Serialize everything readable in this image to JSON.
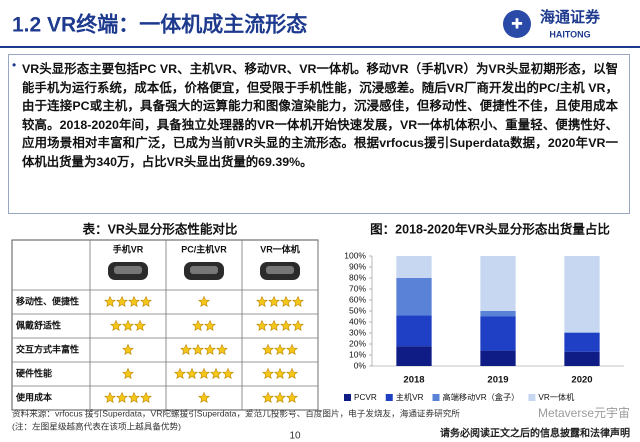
{
  "header": {
    "title": "1.2 VR终端：一体机成主流形态",
    "logo_cn": "海通证券",
    "logo_en": "HAITONG"
  },
  "body": {
    "text": "VR头显形态主要包括PC VR、主机VR、移动VR、VR一体机。移动VR（手机VR）为VR头显初期形态，以智能手机为运行系统，成本低，价格便宜，但受限于手机性能，沉浸感差。随后VR厂商开发出的PC/主机 VR，由于连接PC或主机，具备强大的运算能力和图像渲染能力，沉浸感佳，但移动性、便捷性不佳，且使用成本较高。2018-2020年间，具备独立处理器的VR一体机开始快速发展，VR一体机体积小、重量轻、便携性好、应用场景相对丰富和广泛，已成为当前VR头显的主流形态。根据vrfocus援引Superdata数据，2020年VR一体机出货量为340万，占比VR头显出货量的69.39%。"
  },
  "table": {
    "title": "表：VR头显分形态性能对比",
    "columns": [
      "手机VR",
      "PC/主机VR",
      "VR一体机"
    ],
    "rows": [
      {
        "label": "移动性、便捷性",
        "stars": [
          4,
          1,
          4
        ]
      },
      {
        "label": "佩戴舒适性",
        "stars": [
          3,
          2,
          4
        ]
      },
      {
        "label": "交互方式丰富性",
        "stars": [
          1,
          4,
          3
        ]
      },
      {
        "label": "硬件性能",
        "stars": [
          1,
          5,
          3
        ]
      },
      {
        "label": "使用成本",
        "stars": [
          4,
          1,
          3
        ]
      }
    ]
  },
  "chart_data": {
    "type": "bar",
    "stacked": true,
    "title": "图：2018-2020年VR头显分形态出货量占比",
    "categories": [
      "2018",
      "2019",
      "2020"
    ],
    "series": [
      {
        "name": "PCVR",
        "color": "#0f1c86",
        "values": [
          18,
          14,
          13
        ]
      },
      {
        "name": "主机VR",
        "color": "#1f3fc4",
        "values": [
          28,
          31,
          17
        ]
      },
      {
        "name": "高端移动VR（盒子）",
        "color": "#5a82d6",
        "values": [
          34,
          5,
          0.61
        ]
      },
      {
        "name": "VR一体机",
        "color": "#c7d6f1",
        "values": [
          20,
          50,
          69.39
        ]
      }
    ],
    "ylim": [
      0,
      100
    ],
    "yticks": [
      {
        "value": 0,
        "label": "0%"
      },
      {
        "value": 10,
        "label": "10%"
      },
      {
        "value": 20,
        "label": "20%"
      },
      {
        "value": 30,
        "label": "30%"
      },
      {
        "value": 40,
        "label": "40%"
      },
      {
        "value": 50,
        "label": "50%"
      },
      {
        "value": 60,
        "label": "60%"
      },
      {
        "value": 70,
        "label": "70%"
      },
      {
        "value": 80,
        "label": "80%"
      },
      {
        "value": 90,
        "label": "90%"
      },
      {
        "value": 100,
        "label": "100%"
      }
    ],
    "legend": "bottom"
  },
  "footer": {
    "source": "资料来源：vrfocus 援引Superdata，VR陀螺援引Superdata，爱范儿投影号、百度图片，电子发烧友，海通证券研究所",
    "note": "(注：左图星级越高代表在该项上越具备优势)",
    "page": "10",
    "disclaimer": "请务必阅读正文之后的信息披露和法律声明",
    "watermark": "Metaverse元宇宙"
  }
}
